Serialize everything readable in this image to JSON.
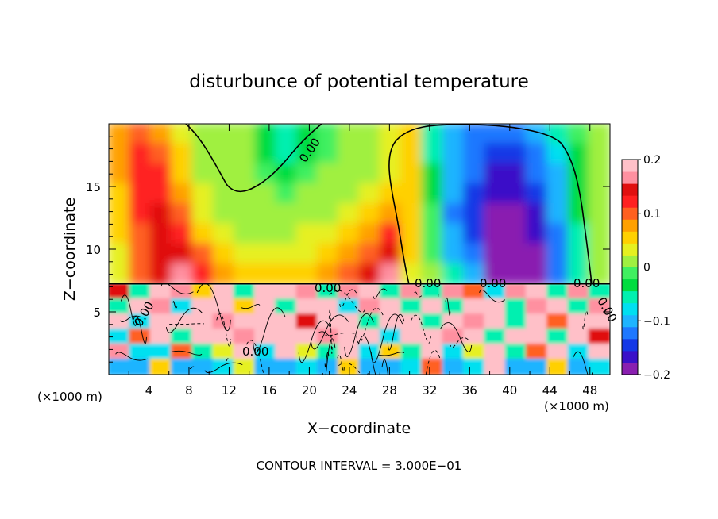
{
  "chart_data": {
    "type": "heatmap",
    "title": "disturbunce of potential temperature",
    "xlabel": "X−coordinate",
    "ylabel": "Z−coordinate",
    "x_unit_left": "(×1000 m)",
    "x_unit_right": "(×1000 m)",
    "footer": "CONTOUR INTERVAL = 3.000E−01",
    "xlim": [
      0,
      50
    ],
    "ylim": [
      0,
      20
    ],
    "x_ticks": [
      "4",
      "8",
      "12",
      "16",
      "20",
      "24",
      "28",
      "32",
      "36",
      "40",
      "44",
      "48"
    ],
    "y_ticks": [
      "5",
      "10",
      "15"
    ],
    "colorbar": {
      "range": [
        -0.2,
        0.2
      ],
      "tick_labels": [
        "0.2",
        "0.1",
        "0",
        "−0.1",
        "−0.2"
      ],
      "colors": [
        "#8a1fb0",
        "#3a10c8",
        "#1438e6",
        "#1e78ff",
        "#1eb4ff",
        "#00e0f0",
        "#00f0b0",
        "#00dd40",
        "#40f060",
        "#a0f040",
        "#e6f020",
        "#ffd000",
        "#ffa000",
        "#ff6020",
        "#ff2020",
        "#e01010",
        "#ff90a0",
        "#ffc0c8"
      ]
    },
    "contour_labels": [
      "0.00",
      "0.00",
      "0.00",
      "0.00",
      "0.00",
      "0.00",
      "0.00",
      "0.00"
    ],
    "upper_field": [
      [
        0.08,
        0.1,
        0.08,
        0.04,
        0.02,
        0.01,
        0.0,
        -0.04,
        -0.06,
        -0.04,
        -0.01,
        0.01,
        0.02,
        0.03,
        0.05,
        -0.06,
        -0.09,
        -0.12,
        -0.13,
        -0.12,
        -0.1,
        -0.06,
        -0.02,
        0.02
      ],
      [
        0.08,
        0.12,
        0.1,
        0.05,
        0.02,
        0.01,
        0.0,
        -0.03,
        -0.05,
        -0.03,
        -0.01,
        0.01,
        0.02,
        0.04,
        0.05,
        -0.05,
        -0.1,
        -0.13,
        -0.15,
        -0.14,
        -0.12,
        -0.08,
        -0.03,
        0.02
      ],
      [
        0.07,
        0.13,
        0.12,
        0.06,
        0.02,
        0.01,
        0.0,
        -0.02,
        -0.03,
        -0.02,
        0.0,
        0.01,
        0.02,
        0.04,
        0.05,
        -0.04,
        -0.1,
        -0.13,
        -0.16,
        -0.16,
        -0.13,
        -0.09,
        -0.03,
        0.02
      ],
      [
        0.06,
        0.13,
        0.13,
        0.08,
        0.03,
        0.02,
        0.01,
        0.0,
        -0.01,
        0.0,
        0.01,
        0.02,
        0.03,
        0.05,
        0.06,
        -0.03,
        -0.11,
        -0.14,
        -0.17,
        -0.17,
        -0.14,
        -0.1,
        -0.03,
        0.02
      ],
      [
        0.06,
        0.12,
        0.14,
        0.1,
        0.04,
        0.02,
        0.02,
        0.01,
        0.01,
        0.01,
        0.02,
        0.03,
        0.05,
        0.08,
        0.06,
        -0.02,
        -0.12,
        -0.15,
        -0.18,
        -0.18,
        -0.16,
        -0.11,
        -0.04,
        0.02
      ],
      [
        0.05,
        0.11,
        0.14,
        0.12,
        0.06,
        0.03,
        0.02,
        0.02,
        0.02,
        0.03,
        0.03,
        0.05,
        0.08,
        0.12,
        0.06,
        -0.02,
        -0.11,
        -0.14,
        -0.18,
        -0.19,
        -0.17,
        -0.12,
        -0.05,
        0.01
      ],
      [
        0.04,
        0.1,
        0.15,
        0.15,
        0.09,
        0.05,
        0.04,
        0.03,
        0.03,
        0.04,
        0.05,
        0.08,
        0.11,
        0.15,
        0.05,
        -0.01,
        -0.09,
        -0.12,
        -0.19,
        -0.2,
        -0.18,
        -0.13,
        -0.06,
        0.0
      ],
      [
        0.04,
        0.09,
        0.15,
        0.16,
        0.12,
        0.08,
        0.06,
        0.05,
        0.05,
        0.06,
        0.07,
        0.1,
        0.14,
        0.17,
        0.04,
        0.0,
        -0.06,
        -0.09,
        -0.18,
        -0.2,
        -0.18,
        -0.12,
        -0.06,
        0.0
      ]
    ],
    "lower_field": [
      [
        0.14,
        -0.05,
        0.18,
        0.17,
        0.05,
        0.18,
        -0.05,
        0.18,
        0.18,
        0.17,
        -0.06,
        0.17,
        0.18,
        -0.06,
        0.17,
        -0.05,
        0.17,
        0.1,
        -0.07,
        0.17,
        0.18,
        -0.05,
        0.17,
        -0.06
      ],
      [
        -0.06,
        0.18,
        0.17,
        -0.08,
        0.18,
        0.18,
        0.05,
        0.18,
        -0.06,
        0.18,
        0.18,
        -0.07,
        0.17,
        0.18,
        -0.06,
        0.18,
        -0.05,
        0.18,
        0.18,
        -0.06,
        0.17,
        0.18,
        -0.06,
        0.16
      ],
      [
        0.18,
        -0.07,
        0.18,
        0.18,
        0.18,
        0.17,
        0.18,
        0.18,
        0.18,
        0.15,
        0.18,
        0.18,
        -0.06,
        0.18,
        0.18,
        -0.06,
        0.18,
        0.17,
        0.18,
        -0.05,
        0.18,
        0.1,
        0.18,
        0.18
      ],
      [
        -0.07,
        0.1,
        0.18,
        -0.06,
        0.18,
        0.18,
        0.16,
        0.18,
        0.18,
        0.18,
        0.17,
        0.18,
        0.18,
        -0.07,
        0.18,
        0.18,
        0.16,
        0.18,
        -0.05,
        0.18,
        0.18,
        -0.06,
        0.18,
        0.14
      ],
      [
        0.17,
        -0.08,
        -0.07,
        0.1,
        -0.06,
        0.04,
        0.18,
        -0.07,
        0.18,
        0.04,
        -0.06,
        0.18,
        -0.07,
        0.06,
        -0.06,
        0.18,
        -0.07,
        0.04,
        0.18,
        -0.06,
        0.1,
        0.18,
        -0.07,
        0.18
      ],
      [
        -0.09,
        -0.1,
        0.06,
        -0.09,
        -0.1,
        -0.08,
        0.04,
        -0.1,
        -0.09,
        -0.08,
        -0.1,
        0.05,
        -0.09,
        -0.1,
        -0.08,
        0.1,
        -0.09,
        -0.08,
        0.18,
        -0.1,
        -0.09,
        0.05,
        -0.09,
        -0.08
      ]
    ]
  }
}
